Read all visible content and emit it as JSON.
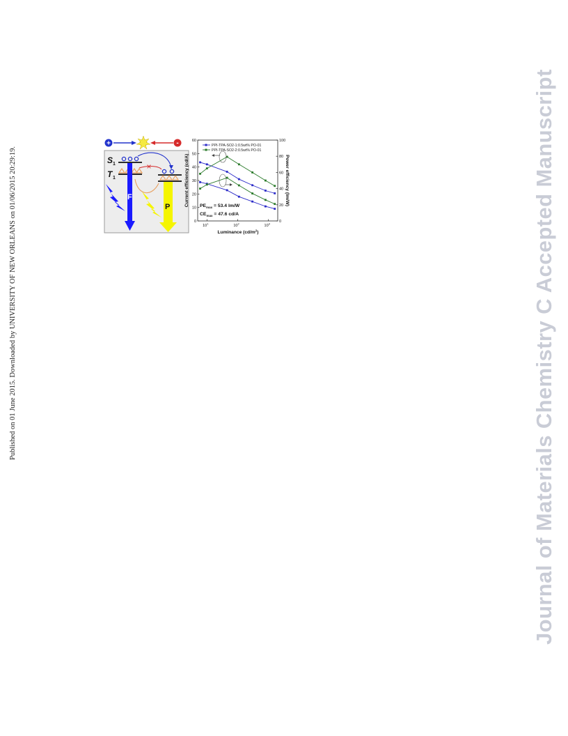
{
  "page": {
    "side_note": "Published on 01 June 2015. Downloaded by UNIVERSITY OF NEW ORLEANS on 01/06/2015 20:29:19.",
    "watermark": "Journal of Materials Chemistry C Accepted Manuscript"
  },
  "scheme": {
    "s1_label": "S",
    "s1_sub": "1",
    "t1_label": "T",
    "t1_sub": "1",
    "f_label": "F",
    "p_label": "P",
    "plus_symbol": "+",
    "minus_symbol": "-",
    "blocked_symbol": "×",
    "colors": {
      "fluorescence": "#1a1aff",
      "phosphorescence": "#f5f500",
      "electron": "#d62b2b",
      "hole": "#2233cc",
      "exciton": "#f0e050",
      "triplet": "#e8a060"
    }
  },
  "chart_data": {
    "type": "line",
    "xlabel": "Luminance (cd/m",
    "xlabel_sup": "2",
    "xlabel_end": ")",
    "ylabel": "Current efficiency (cd/A)",
    "y2label": "Power efficiency (lm/W)",
    "xscale": "log",
    "xlim": [
      5,
      2000
    ],
    "ylim": [
      0,
      60
    ],
    "y2lim": [
      0,
      100
    ],
    "xticks": [
      10,
      100,
      1000
    ],
    "xtick_base": "10",
    "xtick_exps": [
      "1",
      "2",
      "3"
    ],
    "yticks": [
      "0",
      "10",
      "20",
      "30",
      "40",
      "50",
      "60"
    ],
    "y2ticks": [
      "0",
      "20",
      "40",
      "60",
      "80",
      "100"
    ],
    "legend": [
      "PPI-TPA-SO2-1:0.5wt% PO-01",
      "PPI-TPA-SO2-2:0.5wt% PO-01"
    ],
    "legend_position": "top",
    "series": [
      {
        "name": "PPI-TPA-SO2-1:0.5wt% PO-01",
        "axis": "ce",
        "color": "#2a2ac8",
        "x": [
          6,
          10,
          45,
          110,
          300,
          800,
          1600
        ],
        "y": [
          43.5,
          42,
          36.5,
          31,
          26.5,
          22.5,
          20.5
        ]
      },
      {
        "name": "PPI-TPA-SO2-1:0.5wt% PO-01",
        "axis": "pe",
        "color": "#2a2ac8",
        "x": [
          6,
          10,
          45,
          110,
          300,
          800,
          1600
        ],
        "y": [
          48,
          46,
          38,
          30,
          24,
          18,
          15
        ]
      },
      {
        "name": "PPI-TPA-SO2-2:0.5wt% PO-01",
        "axis": "ce",
        "color": "#2a7a2a",
        "x": [
          6,
          10,
          45,
          110,
          300,
          800,
          1600
        ],
        "y": [
          35,
          39,
          47.6,
          42,
          36,
          30,
          26
        ]
      },
      {
        "name": "PPI-TPA-SO2-2:0.5wt% PO-01",
        "axis": "pe",
        "color": "#2a7a2a",
        "x": [
          6,
          10,
          45,
          110,
          300,
          800,
          1600
        ],
        "y": [
          40,
          45,
          53.4,
          44,
          34,
          26,
          21
        ]
      }
    ],
    "annotations": [
      {
        "main": "PE",
        "sub": "max",
        "value": " = 53.4 lm/W"
      },
      {
        "main": "CE",
        "sub": "max",
        "value": " = 47.6 cd/A"
      }
    ]
  }
}
